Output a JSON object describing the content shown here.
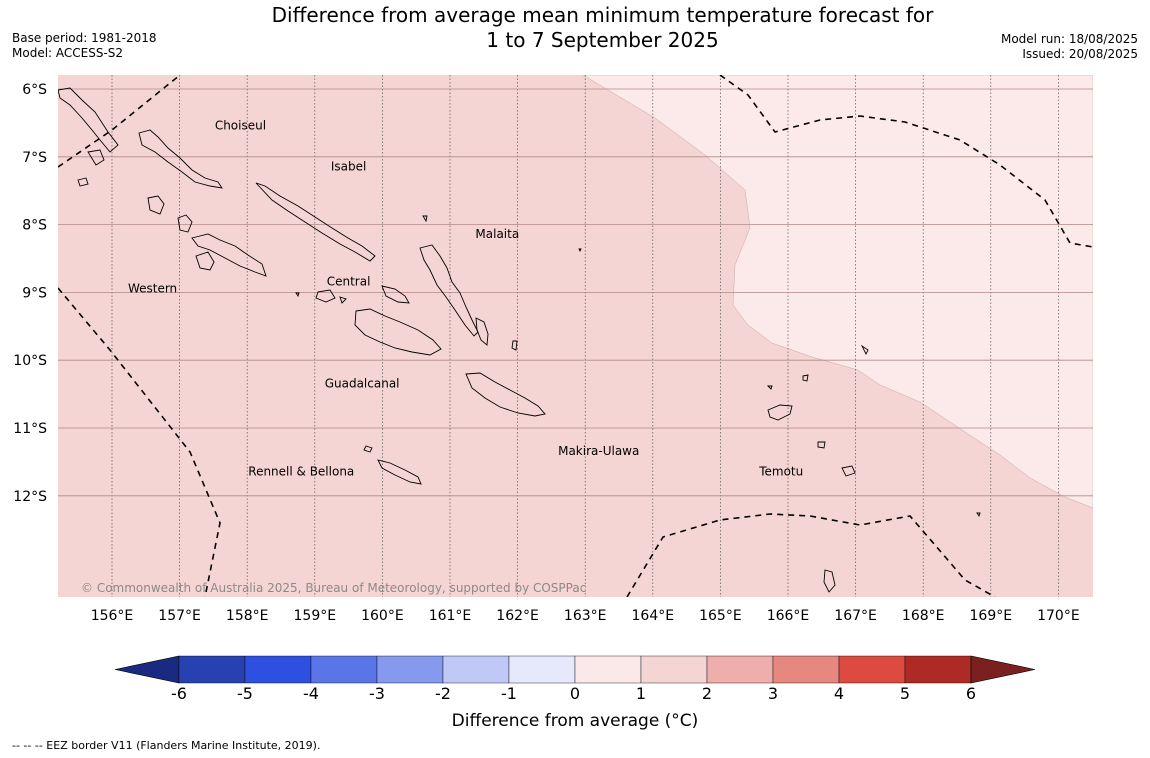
{
  "header": {
    "title_line1": "Difference from average mean minimum temperature forecast for",
    "title_line2": "1 to 7 September 2025",
    "base_period": "Base period: 1981-2018",
    "model": "Model: ACCESS-S2",
    "model_run": "Model run: 18/08/2025",
    "issued": "Issued: 20/08/2025"
  },
  "map": {
    "region": "Solomon Islands",
    "lon_ticks": [
      "156°E",
      "157°E",
      "158°E",
      "159°E",
      "160°E",
      "161°E",
      "162°E",
      "163°E",
      "164°E",
      "165°E",
      "166°E",
      "167°E",
      "168°E",
      "169°E",
      "170°E"
    ],
    "lat_ticks": [
      "6°S",
      "7°S",
      "8°S",
      "9°S",
      "10°S",
      "11°S",
      "12°S"
    ],
    "province_labels": [
      {
        "name": "Choiseul",
        "lon": 157.9,
        "lat": -6.6
      },
      {
        "name": "Isabel",
        "lon": 159.5,
        "lat": -7.2
      },
      {
        "name": "Malaita",
        "lon": 161.7,
        "lat": -8.2
      },
      {
        "name": "Western",
        "lon": 156.6,
        "lat": -9.0
      },
      {
        "name": "Central",
        "lon": 159.5,
        "lat": -8.9
      },
      {
        "name": "Guadalcanal",
        "lon": 159.7,
        "lat": -10.4
      },
      {
        "name": "Makira-Ulawa",
        "lon": 163.2,
        "lat": -11.4
      },
      {
        "name": "Rennell & Bellona",
        "lon": 158.8,
        "lat": -11.7
      },
      {
        "name": "Temotu",
        "lon": 165.9,
        "lat": -11.7
      }
    ],
    "zones": [
      {
        "category": "1 to 2",
        "color": "#f5d5d3"
      },
      {
        "category": "0 to 1",
        "color": "#fbeae9"
      }
    ],
    "copyright": "© Commonwealth of Australia 2025, Bureau of Meteorology, supported by COSPPac"
  },
  "colorbar": {
    "tick_labels": [
      "-6",
      "-5",
      "-4",
      "-3",
      "-2",
      "-1",
      "0",
      "1",
      "2",
      "3",
      "4",
      "5",
      "6"
    ],
    "colors": [
      "#1a2a80",
      "#2742b0",
      "#2e50e0",
      "#5a75e8",
      "#8599ee",
      "#c0c8f5",
      "#e6e9fc",
      "#fbe9e9",
      "#f5d5d3",
      "#eeaeab",
      "#e68880",
      "#dc4a40",
      "#ae2a24",
      "#7a2020"
    ],
    "label": "Difference from average (°C)"
  },
  "legend_note": "--  --  -- EEZ border V11 (Flanders Marine Institute, 2019)."
}
